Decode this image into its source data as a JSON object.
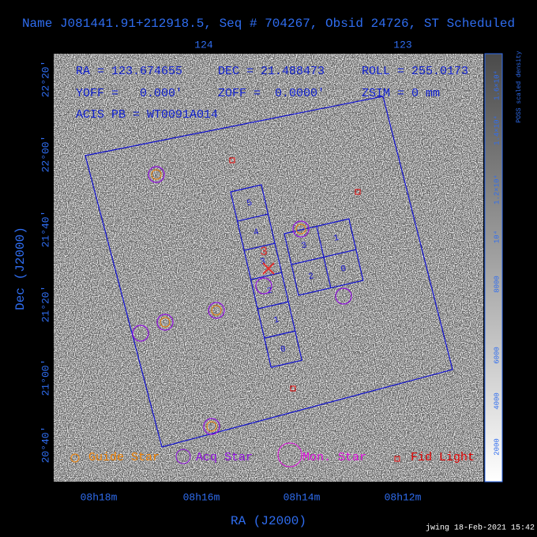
{
  "title": "Name J081441.91+212918.5, Seq # 704267, Obsid 24726, ST Scheduled",
  "info": [
    "RA = 123.674655",
    "DEC = 21.488473",
    "ROLL = 255.0173",
    "YOFF =   0.000'",
    "ZOFF =  0.0000'",
    "ZSIM = 0 mm",
    "ACIS PB = WT0091A014"
  ],
  "top_ticks": [
    "124",
    "123"
  ],
  "left_ticks": [
    "22°20'",
    "22°00'",
    "21°40'",
    "21°20'",
    "21°00'",
    "20°40'"
  ],
  "bottom_ticks": [
    "08h18m",
    "08h16m",
    "08h14m",
    "08h12m"
  ],
  "x_label": "RA (J2000)",
  "y_label": "Dec (J2000)",
  "colorbar": {
    "label": "POSS scaled density",
    "ticks": [
      "2000",
      "4000",
      "6000",
      "8000",
      "10⁴",
      "1.2×10⁴",
      "1.4×10⁴",
      "1.6×10⁴"
    ]
  },
  "s_array": [
    "5",
    "4",
    "3",
    "2",
    "1",
    "0"
  ],
  "i_array": [
    "3",
    "1",
    "2",
    "0"
  ],
  "monitor_label": "3",
  "legend": [
    "Guide Star",
    "Acq Star",
    "Mon. Star",
    "Fid Light"
  ],
  "footer": "jwing 18-Feb-2021 15:42"
}
